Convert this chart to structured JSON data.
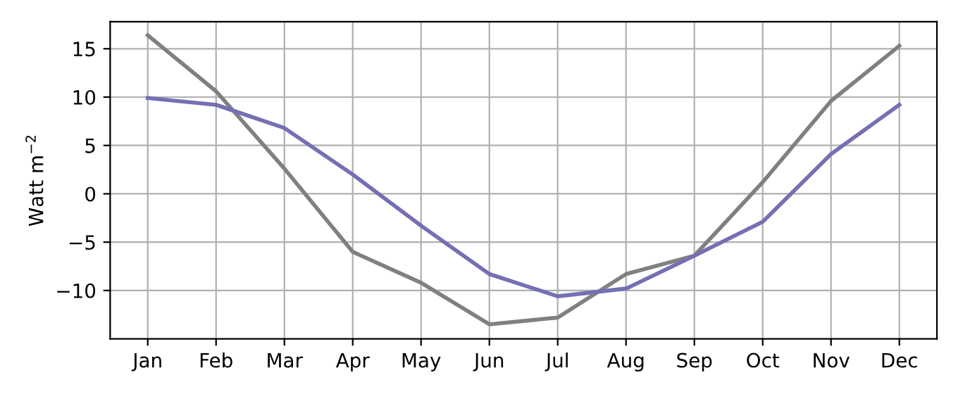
{
  "chart_data": {
    "type": "line",
    "ylabel": "Watt m$^{−2}$",
    "categories": [
      "Jan",
      "Feb",
      "Mar",
      "Apr",
      "May",
      "Jun",
      "Jul",
      "Aug",
      "Sep",
      "Oct",
      "Nov",
      "Dec"
    ],
    "series": [
      {
        "color": "#808080",
        "values": [
          16.4,
          10.6,
          2.6,
          -6.0,
          -9.2,
          -13.5,
          -12.8,
          -8.3,
          -6.4,
          1.2,
          9.6,
          15.3
        ]
      },
      {
        "color": "#7570b3",
        "values": [
          9.9,
          9.2,
          6.8,
          2.0,
          -3.3,
          -8.3,
          -10.6,
          -9.8,
          -6.4,
          -2.9,
          4.1,
          9.2
        ]
      }
    ],
    "ylim": [
      -15,
      17.8
    ],
    "yticks": [
      {
        "value": -10,
        "label": "−10"
      },
      {
        "value": -5,
        "label": "−5"
      },
      0,
      5,
      10,
      15
    ],
    "grid": true,
    "line_style": "solid",
    "marker": "none"
  }
}
